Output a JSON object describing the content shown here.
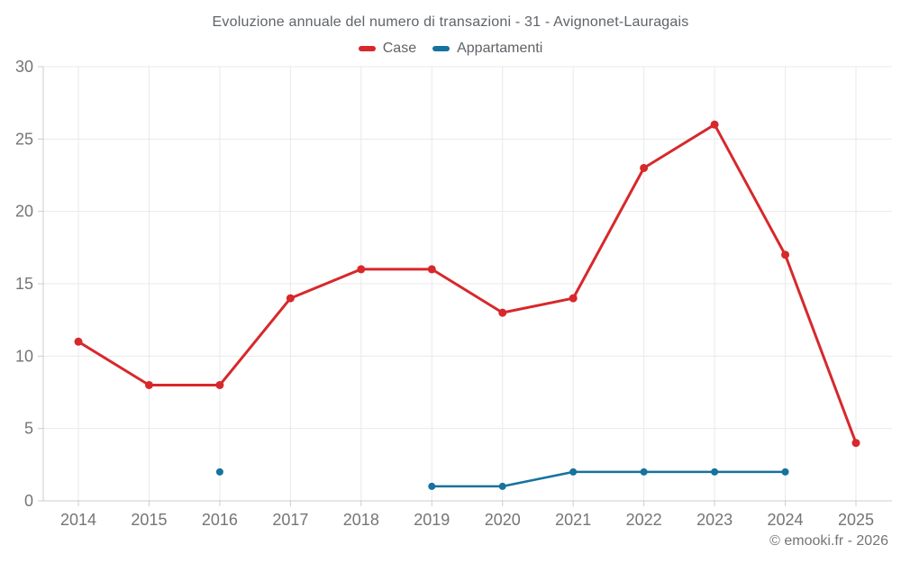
{
  "footer": {
    "credit": "© emooki.fr - 2026"
  },
  "chart_data": {
    "type": "line",
    "title": "Evoluzione annuale del numero di transazioni - 31 - Avignonet-Lauragais",
    "x": [
      2014,
      2015,
      2016,
      2017,
      2018,
      2019,
      2020,
      2021,
      2022,
      2023,
      2024,
      2025
    ],
    "series": [
      {
        "name": "Case",
        "color": "#d7282c",
        "values": [
          11,
          8,
          8,
          14,
          16,
          16,
          13,
          14,
          23,
          26,
          17,
          4
        ]
      },
      {
        "name": "Appartamenti",
        "color": "#16729e",
        "values": [
          null,
          null,
          2,
          null,
          null,
          1,
          1,
          2,
          2,
          2,
          2,
          null
        ]
      }
    ],
    "xlabel": "",
    "ylabel": "",
    "ylim": [
      0,
      30
    ],
    "yticks": [
      0,
      5,
      10,
      15,
      20,
      25,
      30
    ],
    "grid": true,
    "legend_position": "top",
    "colors": {
      "grid": "#e9e9e9",
      "axis": "#cccccc",
      "tick_label": "#757575"
    }
  }
}
